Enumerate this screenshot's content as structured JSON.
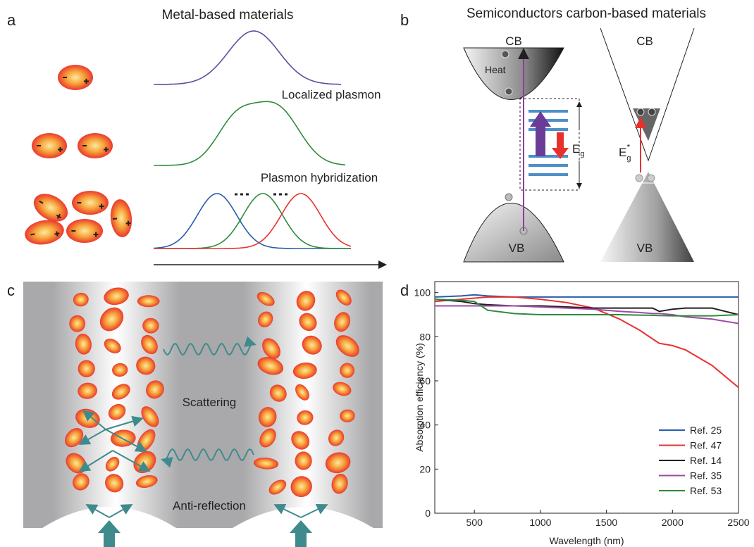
{
  "panels": {
    "a": {
      "label": "a",
      "title": "Metal-based materials",
      "localized": "Localized plasmon",
      "hybrid": "Plasmon hybridization"
    },
    "b": {
      "label": "b",
      "title": "Semiconductors carbon-based materials",
      "cb_left": "CB",
      "vb_left": "VB",
      "heat": "Heat",
      "eg": {
        "main": "E",
        "sub": "g"
      },
      "cb_right": "CB",
      "vb_right": "VB",
      "eg_star": {
        "main": "E",
        "sub": "g",
        "sup": "*"
      }
    },
    "c": {
      "label": "c",
      "scattering": "Scattering",
      "antireflection": "Anti-reflection"
    },
    "d": {
      "label": "d"
    }
  },
  "chart_data": {
    "type": "line",
    "x_label": "Wavelength (nm)",
    "y_label": "Absorption efficiency (%)",
    "x": [
      200,
      400,
      500,
      600,
      800,
      1000,
      1200,
      1400,
      1600,
      1750,
      1850,
      1900,
      2000,
      2100,
      2300,
      2500
    ],
    "xlim": [
      200,
      2500
    ],
    "ylim": [
      0,
      105
    ],
    "xticks": [
      500,
      1000,
      1500,
      2000,
      2500
    ],
    "yticks": [
      0,
      20,
      40,
      60,
      80,
      100
    ],
    "legend": "lower right",
    "series": [
      {
        "name": "Ref. 25",
        "color": "#2a5caa",
        "values": [
          98,
          98.5,
          99,
          98.5,
          98,
          98,
          98,
          98,
          98,
          98,
          98,
          98,
          98,
          98,
          98,
          98
        ]
      },
      {
        "name": "Ref. 47",
        "color": "#e8312f",
        "values": [
          96,
          97,
          97.5,
          98,
          98,
          97,
          95.5,
          93,
          88,
          83,
          79,
          77,
          76,
          74,
          67,
          57
        ]
      },
      {
        "name": "Ref. 14",
        "color": "#231f20",
        "values": [
          97,
          96,
          95,
          94.5,
          94,
          94,
          93.5,
          93,
          93,
          93,
          93,
          91.5,
          92.5,
          93,
          93,
          90
        ]
      },
      {
        "name": "Ref. 35",
        "color": "#a04aa6",
        "values": [
          94,
          94,
          94,
          94,
          94,
          93.5,
          93,
          92.5,
          91.5,
          91,
          90.5,
          90.5,
          90,
          89,
          88,
          86
        ]
      },
      {
        "name": "Ref. 53",
        "color": "#2e8b3e",
        "values": [
          97,
          96.5,
          96,
          92,
          90.5,
          90,
          90,
          90,
          90,
          89.8,
          89.7,
          89.6,
          89.5,
          89.5,
          89.5,
          90
        ]
      }
    ]
  }
}
